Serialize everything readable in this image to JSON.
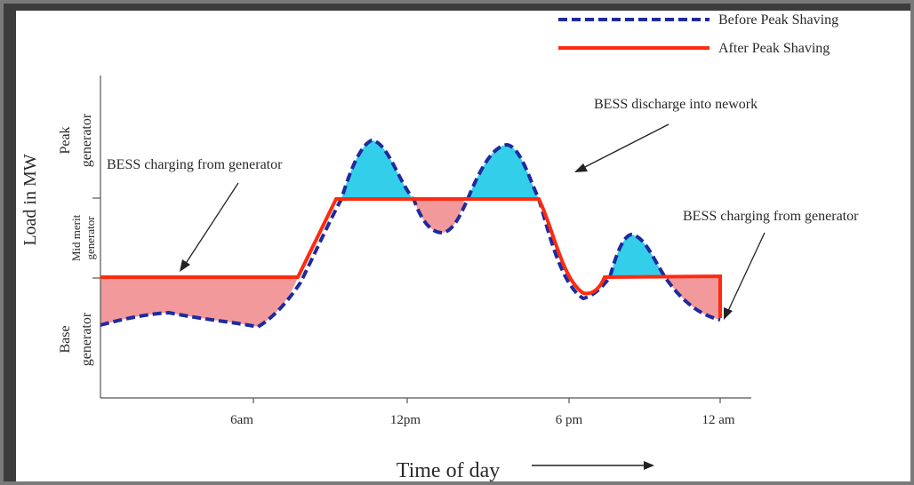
{
  "legend": {
    "before_label": "Before Peak Shaving",
    "after_label": "After Peak Shaving"
  },
  "y_axis": {
    "title": "Load in MW",
    "bands": [
      {
        "line1": "Peak",
        "line2": "generator"
      },
      {
        "line1": "Mid merit",
        "line2": "generator"
      },
      {
        "line1": "Base",
        "line2": "generator"
      }
    ]
  },
  "x_axis": {
    "title": "Time of day",
    "ticks": [
      "6am",
      "12pm",
      "6 pm",
      "12 am"
    ]
  },
  "annotations": {
    "charging_left": "BESS charging from generator",
    "discharge": "BESS discharge into nework",
    "charging_right": "BESS charging from generator"
  },
  "colors": {
    "before_line": "#1f2a9c",
    "after_line": "#ff2a0f",
    "discharge_fill": "#33cfea",
    "charging_fill": "#f2999c",
    "axis": "#555555"
  }
}
